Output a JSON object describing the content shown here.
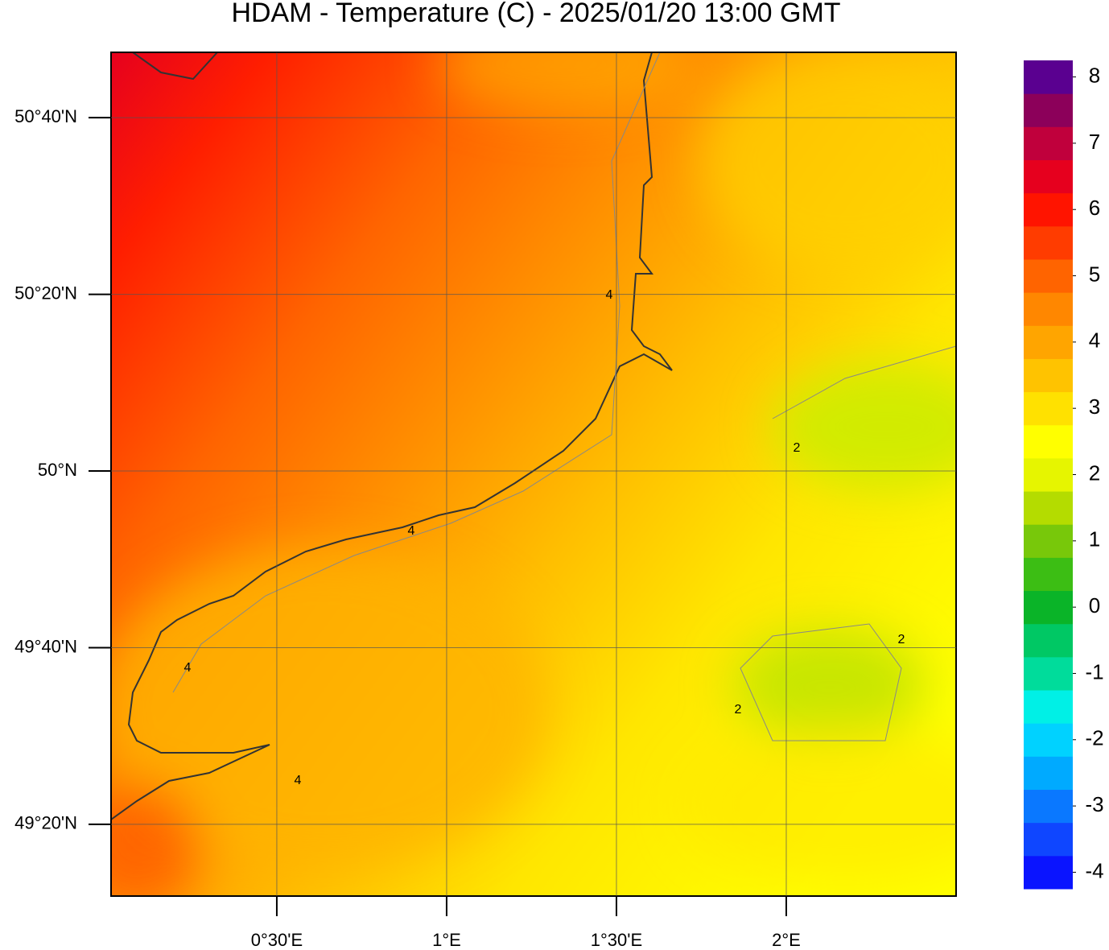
{
  "chart_data": {
    "type": "map",
    "title": "HDAM - Temperature (C)  -  2025/01/20  13:00 GMT",
    "xlim": [
      0.012,
      2.5
    ],
    "ylim": [
      49.198,
      50.79
    ],
    "xticks": [
      {
        "value": 0.5,
        "label": "0°30'E"
      },
      {
        "value": 1,
        "label": "1°E"
      },
      {
        "value": 1.5,
        "label": "1°30'E"
      },
      {
        "value": 2,
        "label": "2°E"
      }
    ],
    "yticks": [
      {
        "value": 49.3333,
        "label": "49°20'N"
      },
      {
        "value": 49.6667,
        "label": "49°40'N"
      },
      {
        "value": 50,
        "label": "50°N"
      },
      {
        "value": 50.3333,
        "label": "50°20'N"
      },
      {
        "value": 50.6667,
        "label": "50°40'N"
      }
    ],
    "colorbar": {
      "lim": [
        -4.25,
        8.25
      ],
      "ticks": [
        -4,
        -3,
        -2,
        -1,
        0,
        1,
        2,
        3,
        4,
        5,
        6,
        7,
        8
      ],
      "colors": [
        "#0a14ff",
        "#0f46ff",
        "#0a78ff",
        "#00aaff",
        "#00d2ff",
        "#00f0e6",
        "#00dc9b",
        "#00c864",
        "#0ab428",
        "#3cbe14",
        "#78c80a",
        "#b4dc00",
        "#e6f500",
        "#ffff00",
        "#ffe100",
        "#ffc300",
        "#ffa500",
        "#ff8700",
        "#ff6400",
        "#ff3c00",
        "#ff1400",
        "#e6001e",
        "#c0003c",
        "#8c005a",
        "#5a0090"
      ]
    },
    "contour_labels": [
      4,
      4,
      4,
      4,
      2,
      2,
      2
    ]
  }
}
